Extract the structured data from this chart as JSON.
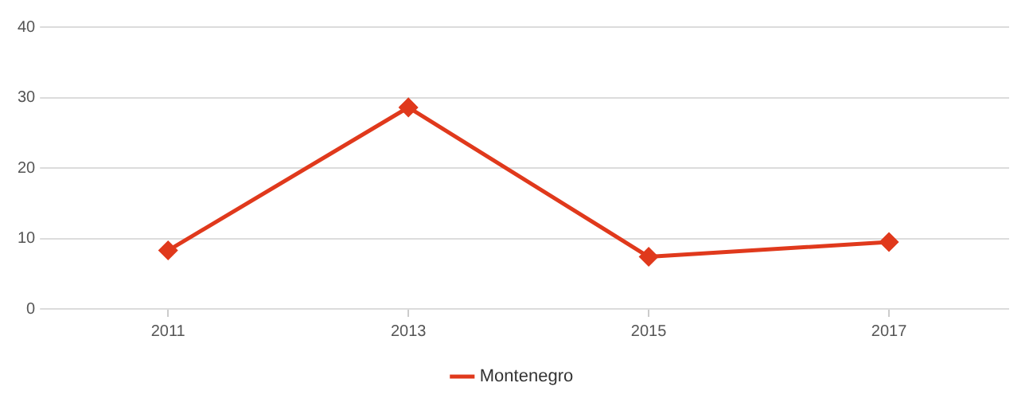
{
  "chart_data": {
    "type": "line",
    "categories": [
      "2011",
      "2013",
      "2015",
      "2017"
    ],
    "series": [
      {
        "name": "Montenegro",
        "color": "#e0391c",
        "values": [
          8.3,
          28.6,
          7.4,
          9.5
        ]
      }
    ],
    "ylim": [
      0,
      40
    ],
    "yticks": [
      0,
      10,
      20,
      30,
      40
    ],
    "grid": "y",
    "legend": "bottom",
    "marker": "diamond",
    "line_style": "solid"
  }
}
